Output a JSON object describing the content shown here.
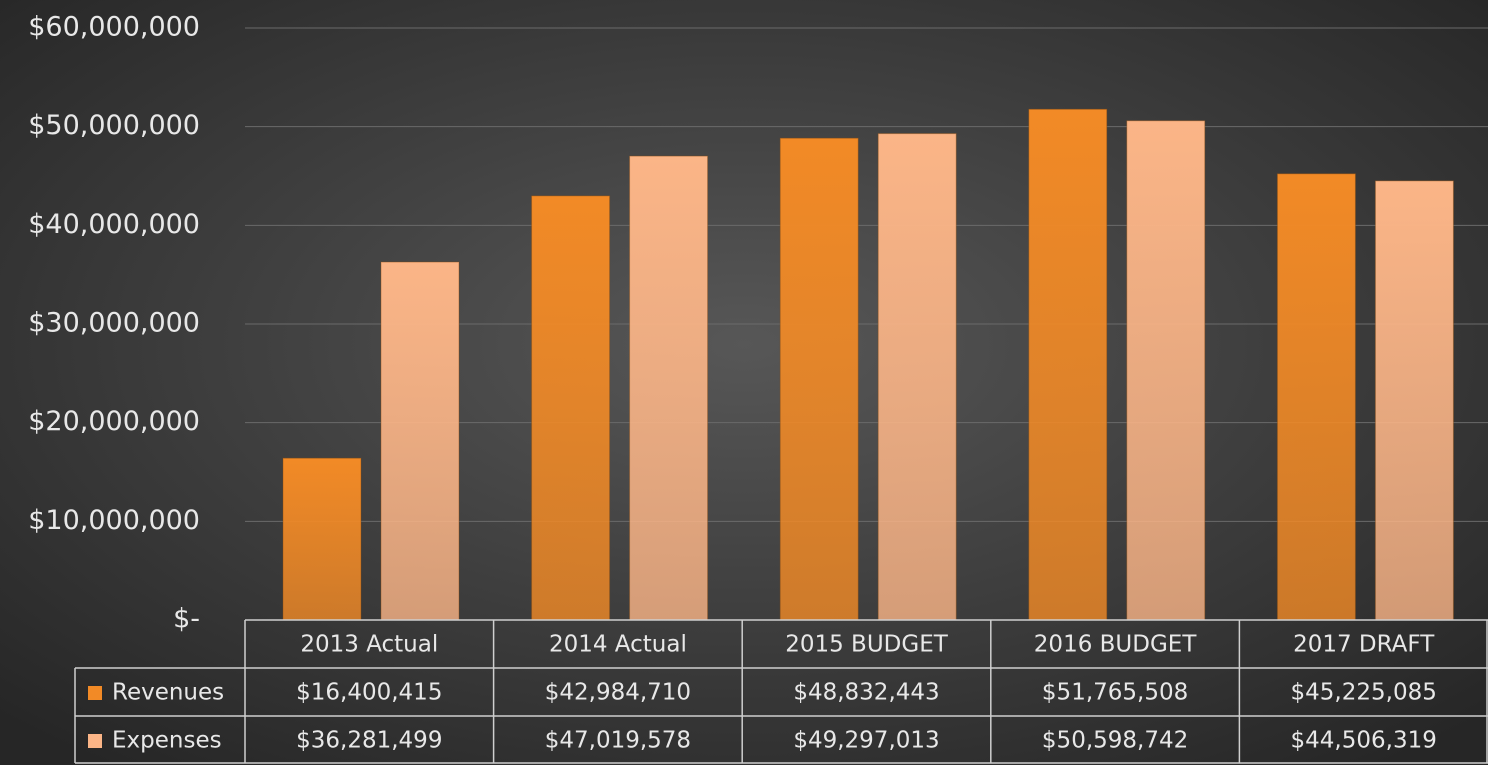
{
  "chart_data": {
    "type": "bar",
    "categories": [
      "2013 Actual",
      "2014 Actual",
      "2015 BUDGET",
      "2016 BUDGET",
      "2017 DRAFT"
    ],
    "series": [
      {
        "name": "Revenues",
        "color": "#f28a26",
        "values": [
          16400415,
          42984710,
          48832443,
          51765508,
          45225085
        ],
        "value_labels": [
          "$16,400,415",
          "$42,984,710",
          "$48,832,443",
          "$51,765,508",
          "$45,225,085"
        ]
      },
      {
        "name": "Expenses",
        "color": "#fbb587",
        "values": [
          36281499,
          47019578,
          49297013,
          50598742,
          44506319
        ],
        "value_labels": [
          "$36,281,499",
          "$47,019,578",
          "$49,297,013",
          "$50,598,742",
          "$44,506,319"
        ]
      }
    ],
    "ylim": [
      0,
      60000000
    ],
    "yticks": [
      {
        "value": 0,
        "label": "$-"
      },
      {
        "value": 10000000,
        "label": "$10,000,000"
      },
      {
        "value": 20000000,
        "label": "$20,000,000"
      },
      {
        "value": 30000000,
        "label": "$30,000,000"
      },
      {
        "value": 40000000,
        "label": "$40,000,000"
      },
      {
        "value": 50000000,
        "label": "$50,000,000"
      },
      {
        "value": 60000000,
        "label": "$60,000,000"
      }
    ],
    "grid": true
  }
}
